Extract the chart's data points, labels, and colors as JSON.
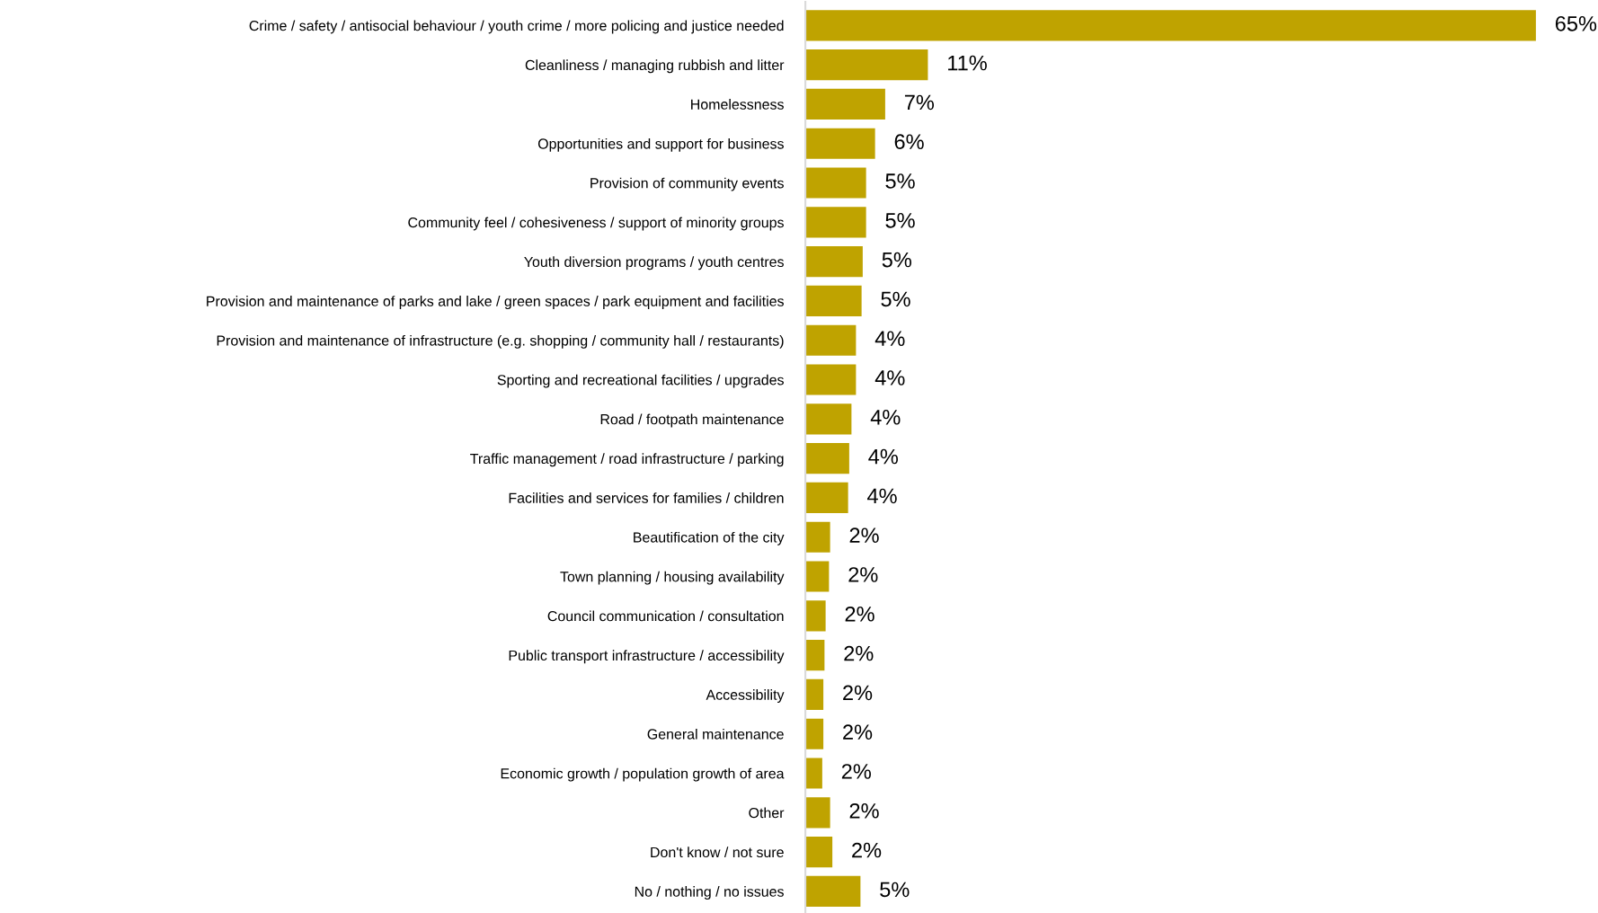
{
  "chart_data": {
    "type": "bar",
    "orientation": "horizontal",
    "color": "#bfa300",
    "categories": [
      "Crime / safety / antisocial behaviour / youth crime / more policing and justice needed",
      "Cleanliness / managing rubbish and litter",
      "Homelessness",
      "Opportunities and support for business",
      "Provision of community events",
      "Community feel / cohesiveness / support of minority groups",
      "Youth diversion programs / youth centres",
      "Provision and maintenance of parks and lake / green spaces / park equipment and facilities",
      "Provision and maintenance of infrastructure (e.g. shopping / community hall / restaurants)",
      "Sporting and recreational facilities / upgrades",
      "Road / footpath maintenance",
      "Traffic management / road infrastructure / parking",
      "Facilities and services for families / children",
      "Beautification of the city",
      "Town planning / housing availability",
      "Council communication / consultation",
      "Public transport infrastructure / accessibility",
      "Accessibility",
      "General maintenance",
      "Economic growth / population growth of area",
      "Other",
      "Don't know / not sure",
      "No / nothing / no issues"
    ],
    "values": [
      65,
      10.9,
      7.1,
      6.2,
      5.4,
      5.4,
      5.1,
      5.0,
      4.5,
      4.5,
      4.1,
      3.9,
      3.8,
      2.2,
      2.1,
      1.8,
      1.7,
      1.6,
      1.6,
      1.5,
      2.2,
      2.4,
      4.9
    ],
    "value_labels": [
      "65%",
      "11%",
      "7%",
      "6%",
      "5%",
      "5%",
      "5%",
      "5%",
      "4%",
      "4%",
      "4%",
      "4%",
      "4%",
      "2%",
      "2%",
      "2%",
      "2%",
      "2%",
      "2%",
      "2%",
      "2%",
      "2%",
      "5%"
    ]
  }
}
